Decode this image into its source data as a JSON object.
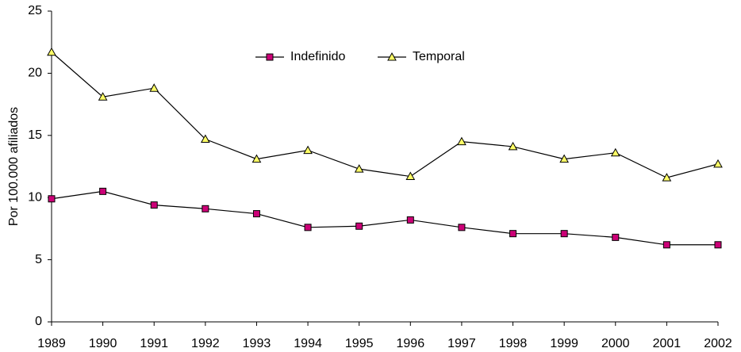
{
  "chart_data": {
    "type": "line",
    "y_label": "Por 100.000 afiliados",
    "categories": [
      "1989",
      "1990",
      "1991",
      "1992",
      "1993",
      "1994",
      "1995",
      "1996",
      "1997",
      "1998",
      "1999",
      "2000",
      "2001",
      "2002"
    ],
    "series": [
      {
        "name": "Indefinido",
        "color": "#cc0077",
        "marker": "square",
        "values": [
          9.9,
          10.5,
          9.4,
          9.1,
          8.7,
          7.6,
          7.7,
          8.2,
          7.6,
          7.1,
          7.1,
          6.8,
          6.2,
          6.2
        ]
      },
      {
        "name": "Temporal",
        "color": "#ffff66",
        "marker": "triangle",
        "values": [
          21.7,
          18.1,
          18.8,
          14.7,
          13.1,
          13.8,
          12.3,
          11.7,
          14.5,
          14.1,
          13.1,
          13.6,
          11.6,
          12.7
        ]
      }
    ],
    "ylim": [
      0,
      25
    ],
    "yticks": [
      0,
      5,
      10,
      15,
      20,
      25
    ],
    "grid": false,
    "legend": "top"
  }
}
